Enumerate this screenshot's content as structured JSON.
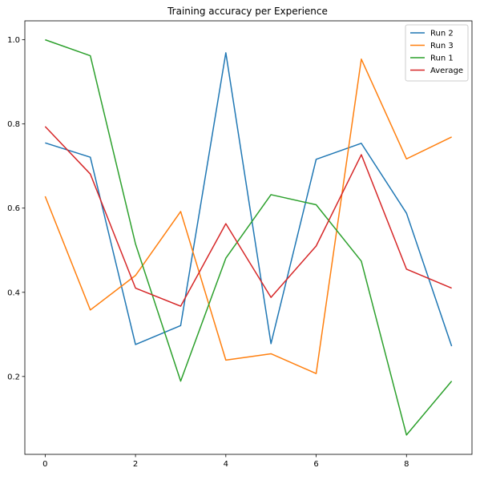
{
  "chart_data": {
    "type": "line",
    "title": "Training accuracy per Experience",
    "xlabel": "",
    "ylabel": "",
    "x": [
      0,
      1,
      2,
      3,
      4,
      5,
      6,
      7,
      8,
      9
    ],
    "xlim": [
      -0.45,
      9.45
    ],
    "ylim": [
      0.015,
      1.045
    ],
    "xticks": [
      0,
      2,
      4,
      6,
      8
    ],
    "xtick_labels": [
      "0",
      "2",
      "4",
      "6",
      "8"
    ],
    "yticks": [
      0.2,
      0.4,
      0.6,
      0.8,
      1.0
    ],
    "ytick_labels": [
      "0.2",
      "0.4",
      "0.6",
      "0.8",
      "1.0"
    ],
    "grid": false,
    "legend_position": "top-right",
    "series": [
      {
        "name": "Run 2",
        "color": "#1f77b4",
        "values": [
          0.755,
          0.721,
          0.276,
          0.321,
          0.969,
          0.278,
          0.716,
          0.754,
          0.588,
          0.272
        ]
      },
      {
        "name": "Run 3",
        "color": "#ff7f0e",
        "values": [
          0.628,
          0.358,
          0.44,
          0.592,
          0.239,
          0.254,
          0.207,
          0.954,
          0.717,
          0.769
        ]
      },
      {
        "name": "Run 1",
        "color": "#2ca02c",
        "values": [
          1.0,
          0.962,
          0.515,
          0.189,
          0.481,
          0.632,
          0.608,
          0.474,
          0.061,
          0.189
        ]
      },
      {
        "name": "Average",
        "color": "#d62728",
        "values": [
          0.794,
          0.681,
          0.41,
          0.367,
          0.563,
          0.388,
          0.51,
          0.727,
          0.455,
          0.41
        ]
      }
    ]
  }
}
